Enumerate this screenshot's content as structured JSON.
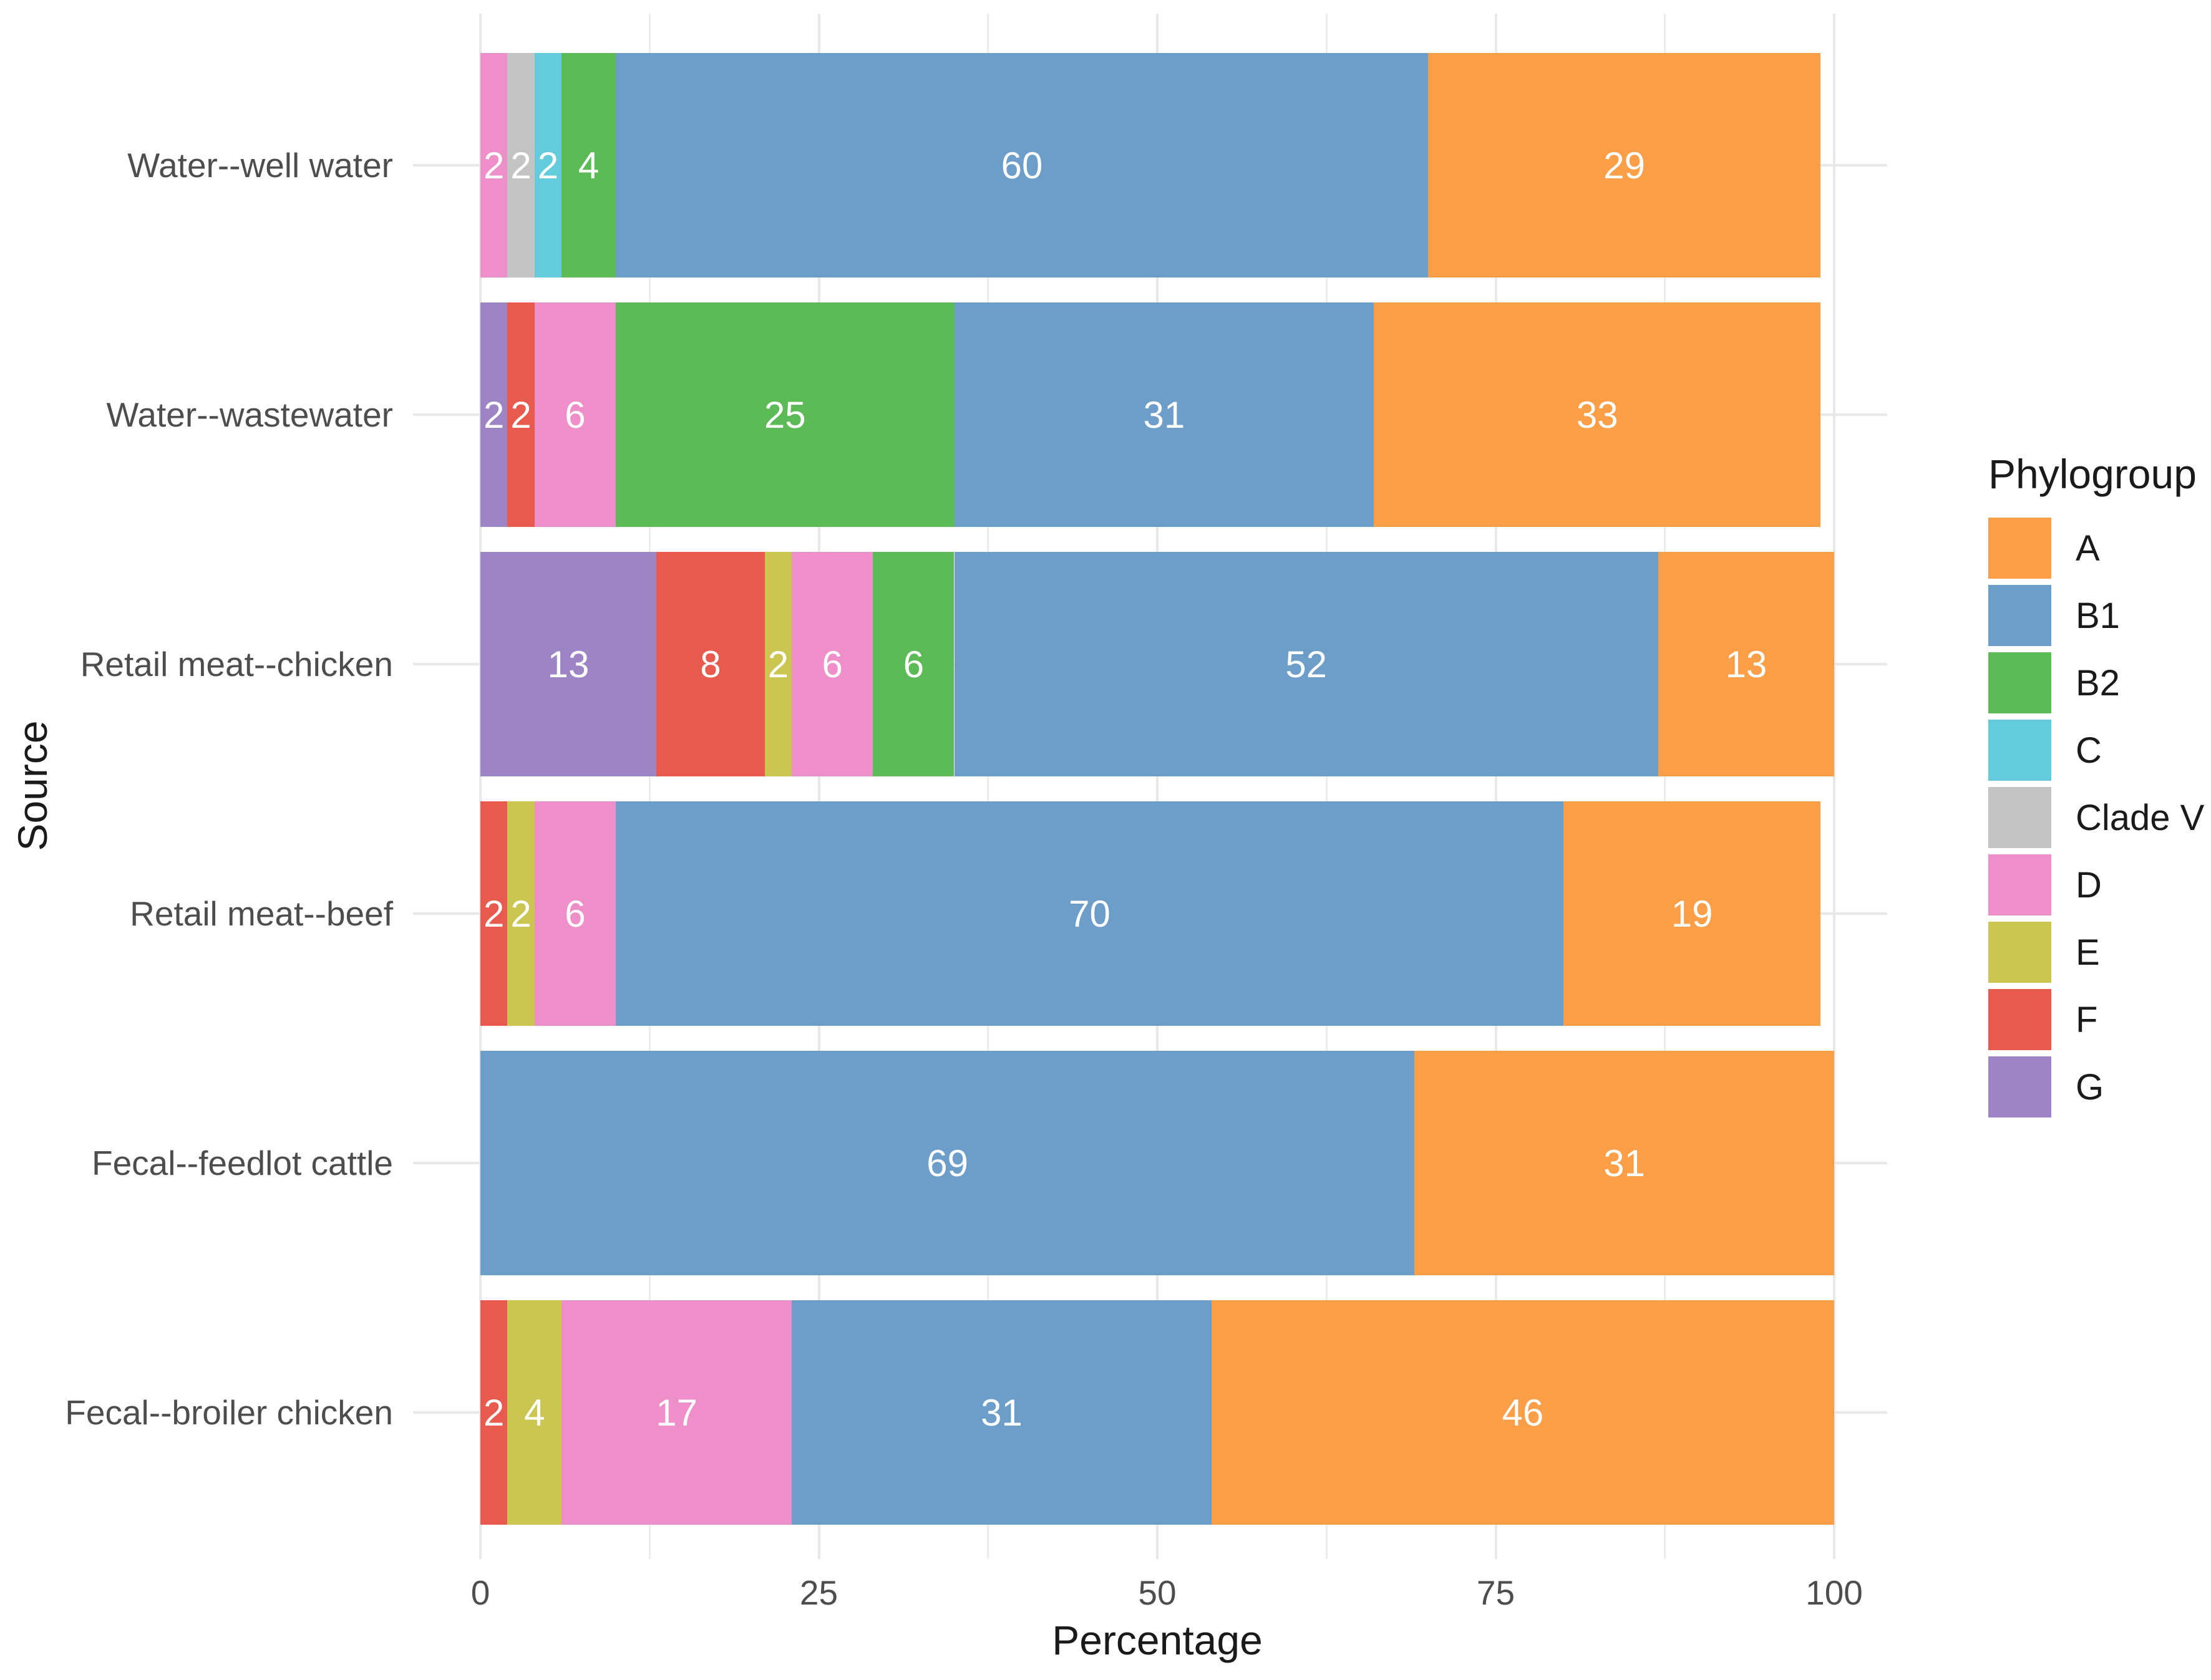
{
  "chart_data": {
    "type": "bar",
    "orientation": "horizontal",
    "stacked": true,
    "title": "",
    "xlabel": "Percentage",
    "ylabel": "Source",
    "xlim": [
      0,
      100
    ],
    "x_ticks": [
      0,
      25,
      50,
      75,
      100
    ],
    "x_minor_gridlines": [
      12.5,
      37.5,
      62.5,
      87.5
    ],
    "grid": true,
    "legend_title": "Phylogroup",
    "legend_position": "right",
    "value_label_color": "#FFFFFF",
    "categories": [
      "Water--well water",
      "Water--wastewater",
      "Retail meat--chicken",
      "Retail meat--beef",
      "Fecal--feedlot cattle",
      "Fecal--broiler chicken"
    ],
    "series": [
      {
        "name": "A",
        "color": "#FA9E48",
        "values": [
          29,
          33,
          13,
          19,
          31,
          46
        ]
      },
      {
        "name": "B1",
        "color": "#6D9DC9",
        "values": [
          60,
          31,
          52,
          70,
          69,
          31
        ]
      },
      {
        "name": "B2",
        "color": "#5CBA57",
        "values": [
          4,
          25,
          6,
          0,
          0,
          0
        ]
      },
      {
        "name": "C",
        "color": "#64CBDC",
        "values": [
          2,
          0,
          0,
          0,
          0,
          0
        ]
      },
      {
        "name": "Clade V",
        "color": "#C3C3C3",
        "values": [
          2,
          0,
          0,
          0,
          0,
          0
        ]
      },
      {
        "name": "D",
        "color": "#EF8FCA",
        "values": [
          2,
          6,
          6,
          6,
          0,
          17
        ]
      },
      {
        "name": "E",
        "color": "#CBC652",
        "values": [
          0,
          0,
          2,
          2,
          0,
          4
        ]
      },
      {
        "name": "F",
        "color": "#E8594E",
        "values": [
          0,
          2,
          8,
          2,
          0,
          2
        ]
      },
      {
        "name": "G",
        "color": "#9C84C5",
        "values": [
          0,
          2,
          13,
          0,
          0,
          0
        ]
      }
    ],
    "stack_order": [
      "G",
      "F",
      "E",
      "D",
      "Clade V",
      "C",
      "B2",
      "B1",
      "A"
    ]
  }
}
